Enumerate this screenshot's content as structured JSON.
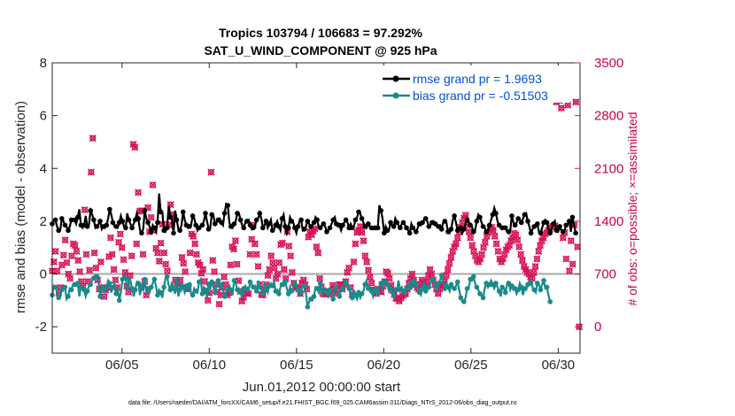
{
  "chart_data": {
    "type": "line",
    "title_line1": "Tropics 103794 / 106683 = 97.292%",
    "title_line2": "SAT_U_WIND_COMPONENT @ 925 hPa",
    "xlabel": "Jun.01,2012 00:00:00 start",
    "ylabel": "rmse and bias (model - observation)",
    "ylabel_right": "# of obs: o=possible; ×=assimilated",
    "footnote": "data file: /Users/raeder/DAI/ATM_forcXX/CAM6_setup/f.e21.FHIST_BGC.f09_025.CAM6assim.011/Diags_NTrS_2012-06/obs_diag_output.nc",
    "xlim": [
      1,
      31.25
    ],
    "ylim": [
      -3,
      8
    ],
    "ylim_right": [
      -350,
      3500
    ],
    "x_ticks": [
      5,
      10,
      15,
      20,
      25,
      30
    ],
    "x_tick_labels": [
      "06/05",
      "06/10",
      "06/15",
      "06/20",
      "06/25",
      "06/30"
    ],
    "y_ticks": [
      -2,
      0,
      2,
      4,
      6,
      8
    ],
    "y_tick_labels": [
      "-2",
      "0",
      "2",
      "4",
      "6",
      "8"
    ],
    "y_ticks_right": [
      0,
      700,
      1400,
      2100,
      2800,
      3500
    ],
    "y_tick_labels_right": [
      "0",
      "700",
      "1400",
      "2100",
      "2800",
      "3500"
    ],
    "colors": {
      "rmse": "#000000",
      "bias": "#1a8a8a",
      "obs": "#d8135a",
      "zero_line": "#a9a9a9",
      "legend_text": "#0050d8"
    },
    "series": [
      {
        "name": "rmse grand pr = 1.9693",
        "axis": "left",
        "values": [
          1.9,
          2.05,
          2.05,
          1.8,
          1.65,
          1.65,
          2.1,
          2,
          1.85,
          1.8,
          1.65,
          1.8,
          2.05,
          2.05,
          2.05,
          1.9,
          2.15,
          2.45,
          1.85,
          1.75,
          1.85,
          2.2,
          1.8,
          1.85,
          2.4,
          2.25,
          2.05,
          1.75,
          1.8,
          1.9,
          2,
          1.7,
          1.8,
          1.75,
          1.85,
          2.1,
          2.45,
          2.25,
          1.95,
          1.8,
          1.8,
          1.75,
          1.95,
          2.2,
          2,
          1.8,
          1.75,
          2.3,
          2.05,
          1.9,
          1.75,
          1.9,
          2.05,
          2.3,
          2.1,
          1.65,
          1.55,
          1.7,
          2.4,
          2.1,
          1.95,
          1.8,
          1.6,
          1.85,
          1.75,
          1.6,
          1.95,
          3.05,
          2.35,
          2.35,
          1.65,
          1.6,
          1.75,
          2.6,
          2.15,
          2.05,
          1.55,
          2.4,
          2.05,
          1.7,
          1.65,
          1.85,
          2.35,
          2.05,
          1.85,
          1.75,
          1.8,
          1.85,
          2.2,
          2.1,
          1.85,
          1.65,
          1.75,
          1.8,
          1.85,
          2,
          2.3,
          2,
          1.7,
          1.75,
          2.25,
          2.2,
          1.9,
          1.95,
          2.05,
          2.1,
          1.95,
          1.85,
          2.3,
          2.65,
          2.6,
          1.95,
          1.8,
          1.75,
          1.9,
          2,
          2.3,
          2.3,
          2.05,
          1.85,
          1.75,
          1.95,
          2,
          2.05,
          1.85,
          1.7,
          1.75,
          1.8,
          2.05,
          2.1,
          2.3,
          2.1,
          1.75,
          1.85,
          2,
          1.75,
          1.9,
          2.05,
          1.65,
          1.7,
          1.85,
          2,
          1.8,
          1.65,
          2.1,
          2.25,
          1.8,
          1.55,
          1.75,
          2.15,
          2,
          1.95,
          1.75,
          1.55,
          1.8,
          2,
          2.05,
          1.65,
          1.7,
          1.8,
          2,
          1.9,
          1.8,
          1.85,
          1.95,
          2.15,
          2.05,
          1.8,
          1.75,
          1.85,
          1.9,
          1.8,
          1.6,
          1.65,
          1.75,
          1.9,
          2.05,
          2.15,
          1.9,
          1.8,
          1.85,
          1.65,
          1.85,
          1.95,
          2.05,
          1.95,
          1.75,
          1.9,
          1.75,
          1.8,
          2.05,
          2.15,
          2.35,
          2.3,
          2.1,
          1.95,
          1.8,
          1.75,
          1.9,
          1.8,
          1.75,
          1.7,
          1.75,
          1.7,
          1.75,
          2.6,
          2.4,
          2.1,
          1.55,
          1.8,
          1.65,
          1.65,
          1.95,
          1.85,
          1.8,
          2.1,
          1.95,
          1.85,
          1.75,
          1.9,
          1.95,
          1.85,
          1.75,
          1.65,
          1.55,
          1.9,
          1.75,
          1.65,
          1.6,
          1.75,
          1.9,
          1.85,
          1.95,
          2.05,
          2.1,
          2,
          1.8,
          1.85,
          1.95,
          2,
          1.9,
          1.8,
          1.8,
          1.85,
          1.7,
          1.95,
          2,
          1.95,
          1.6,
          1.55,
          1.7,
          2.05,
          2.2,
          1.95,
          1.65,
          1.7,
          1.75,
          1.55,
          1.7,
          1.9,
          2.05,
          1.95,
          1.85,
          1.8,
          1.6,
          1.65,
          2,
          2.25,
          2.15,
          1.95,
          1.8,
          1.75,
          1.6,
          1.6,
          1.85,
          2.05,
          2.25,
          2.5,
          2.3,
          2,
          1.85,
          1.75,
          1.75,
          1.8,
          1.75,
          1.6,
          1.6,
          1.65,
          2.2,
          1.95,
          1.85,
          1.95,
          2.1,
          2.05,
          1.95,
          2.1,
          2.25,
          2.3,
          2,
          1.8,
          1.55,
          1.7,
          1.8,
          1.8,
          1.9,
          1.6,
          1.55,
          1.75,
          1.95,
          2.05,
          1.95,
          1.7,
          1.55,
          1.75,
          1.9,
          2,
          1.65,
          1.6,
          1.8,
          1.65,
          1.6,
          1.65,
          1.85,
          1.9,
          2,
          1.6,
          2.15,
          1.85,
          1.55
        ]
      },
      {
        "name": "bias grand pr = -0.51503",
        "axis": "left",
        "values": [
          -0.8,
          -0.45,
          -0.5,
          -0.7,
          -0.9,
          -0.85,
          -0.6,
          -0.5,
          -0.5,
          -0.95,
          -0.85,
          -0.55,
          -0.6,
          -0.4,
          -0.4,
          -0.45,
          -0.35,
          -0.85,
          -0.5,
          -0.55,
          -0.6,
          -0.85,
          -0.65,
          -0.45,
          -0.4,
          -0.25,
          -0.15,
          -0.05,
          -0.1,
          -0.3,
          -0.85,
          -0.45,
          -0.55,
          -0.7,
          -0.5,
          -0.25,
          -0.35,
          -0.7,
          -0.5,
          -0.35,
          -0.75,
          -0.55,
          -1,
          -0.7,
          -0.2,
          -0.05,
          -0.15,
          -0.65,
          -0.2,
          -0.25,
          -0.55,
          -0.85,
          -0.6,
          -0.3,
          -0.35,
          -0.8,
          -0.45,
          -0.65,
          -0.2,
          -0.75,
          -0.55,
          -0.7,
          -0.5,
          -0.35,
          -0.2,
          -0.45,
          -0.8,
          -0.6,
          -0.7,
          -0.9,
          -0.5,
          -0.15,
          -0.1,
          -0.45,
          -0.6,
          -0.3,
          -0.55,
          -0.75,
          -0.25,
          -0.85,
          -0.6,
          -0.3,
          -0.5,
          -0.7,
          -0.45,
          -0.6,
          -0.4,
          -0.75,
          -0.8,
          -0.55,
          -0.65,
          -0.7,
          -0.3,
          -0.2,
          -0.75,
          -0.5,
          -0.6,
          -0.9,
          -0.4,
          -0.55,
          -0.3,
          -0.5,
          -0.7,
          -0.4,
          -0.25,
          -0.55,
          -0.4,
          -0.6,
          -0.85,
          -0.7,
          -0.6,
          -0.45,
          -0.6,
          -0.8,
          -0.25,
          -0.35,
          -0.6,
          -0.55,
          -0.7,
          -0.85,
          -0.55,
          -0.45,
          -0.6,
          -0.65,
          -0.3,
          -0.4,
          -0.5,
          -0.45,
          -0.65,
          -0.25,
          -0.5,
          -0.6,
          -0.75,
          -0.4,
          -0.55,
          -0.7,
          -0.45,
          -0.35,
          -0.45,
          -0.3,
          -0.65,
          -0.6,
          -0.75,
          -0.5,
          -0.4,
          -0.45,
          -0.3,
          -0.55,
          -0.75,
          -0.5,
          -0.65,
          -0.5,
          -0.35,
          -0.4,
          -0.6,
          -0.8,
          -0.7,
          -0.4,
          -0.45,
          -0.75,
          -1.25,
          -1.05,
          -0.95,
          -1,
          -0.85,
          -0.5,
          -0.55,
          -0.7,
          -0.35,
          -0.8,
          -0.6,
          -0.55,
          -0.7,
          -0.85,
          -0.6,
          -0.75,
          -0.95,
          -0.6,
          -0.5,
          -0.7,
          -0.85,
          -0.6,
          -0.55,
          -0.4,
          -0.3,
          -0.4,
          -0.55,
          -0.75,
          -0.9,
          -0.6,
          -0.8,
          -0.95,
          -0.7,
          -0.9,
          -0.75,
          -0.65,
          -0.4,
          -0.25,
          -0.55,
          -0.5,
          -0.65,
          -0.85,
          -0.6,
          -0.55,
          -0.7,
          -0.45,
          -0.35,
          -0.55,
          -0.3,
          -0.25,
          -0.4,
          -0.65,
          -0.55,
          -0.7,
          -0.8,
          -0.55,
          -0.6,
          -0.25,
          -0.6,
          -0.5,
          -0.65,
          -0.75,
          -0.55,
          -0.5,
          -0.4,
          -0.6,
          -0.3,
          -0.2,
          -0.4,
          -0.5,
          -0.7,
          -0.8,
          -0.55,
          -0.3,
          -0.65,
          -0.45,
          -0.5,
          -0.35,
          -0.2,
          -0.15,
          -0.45,
          -0.6,
          -0.35,
          -0.25,
          -0.05,
          -0.3,
          -0.55,
          -0.35,
          -0.5,
          -0.65,
          -0.4,
          -0.55,
          -0.55,
          -0.45,
          -0.3,
          -0.6,
          -0.9,
          -1.05,
          -1.05,
          -0.9,
          -0.55,
          -0.55,
          -0.2,
          -0.25,
          -0.1,
          -0.35,
          -0.5,
          -0.6,
          -0.75,
          -0.8,
          -0.9,
          -0.55,
          -0.35,
          -0.5,
          -0.4,
          -0.25,
          -0.4,
          -0.55,
          -0.35,
          -0.5,
          -0.65,
          -0.85,
          -0.5,
          -0.55,
          -0.7,
          -0.4,
          -0.35,
          -0.6,
          -0.45,
          -0.6,
          -0.55,
          -0.75,
          -0.6,
          -0.35,
          -0.5,
          -0.8,
          -0.55,
          -0.6,
          -0.4,
          -0.25,
          -0.35,
          -0.5,
          -0.6,
          -0.7,
          -0.35,
          -0.4,
          -0.6,
          -0.4,
          -0.25,
          -0.55,
          -0.5,
          -0.8,
          -1.05
        ]
      },
      {
        "name": "obs possible",
        "axis": "right",
        "values": [
          740,
          860,
          1000,
          740,
          450,
          520,
          820,
          950,
          1150,
          850,
          700,
          640,
          940,
          1100,
          1080,
          1000,
          880,
          730,
          600,
          540,
          1550,
          960,
          600,
          750,
          2050,
          2500,
          980,
          780,
          620,
          500,
          860,
          520,
          400,
          490,
          520,
          930,
          1180,
          960,
          760,
          620,
          520,
          1120,
          1230,
          1050,
          890,
          720,
          540,
          460,
          680,
          940,
          2420,
          2380,
          1100,
          1780,
          1530,
          1540,
          960,
          600,
          420,
          1580,
          1260,
          1450,
          1880,
          1280,
          1040,
          980,
          870,
          1110,
          1360,
          980,
          830,
          740,
          1350,
          1620,
          1490,
          1450,
          620,
          580,
          510,
          620,
          920,
          840,
          730,
          520,
          500,
          980,
          1230,
          1200,
          1100,
          960,
          850,
          820,
          710,
          760,
          600,
          470,
          350,
          450,
          2050,
          880,
          730,
          560,
          460,
          300,
          420,
          520,
          660,
          560,
          420,
          450,
          820,
          1060,
          1030,
          1140,
          830,
          610,
          470,
          340,
          390,
          490,
          440,
          440,
          960,
          1160,
          1350,
          1100,
          960,
          800,
          560,
          430,
          420,
          500,
          560,
          680,
          760,
          940,
          850,
          780,
          640,
          700,
          850,
          1090,
          1110,
          760,
          640,
          1260,
          1070,
          940,
          720,
          580,
          520,
          520,
          500,
          440,
          580,
          620,
          560,
          500,
          1190,
          1260,
          1220,
          1270,
          1300,
          1060,
          980,
          640,
          530,
          440,
          430,
          470,
          470,
          460,
          430,
          550,
          500,
          440,
          490,
          560,
          560,
          500,
          560,
          600,
          720,
          780,
          520,
          430,
          860,
          1100,
          1250,
          1280,
          1330,
          1250,
          1140,
          940,
          860,
          750,
          660,
          580,
          490,
          470,
          440,
          500,
          470,
          460,
          540,
          600,
          730,
          710,
          640,
          550,
          480,
          430,
          380,
          370,
          340,
          380,
          410,
          430,
          440,
          500,
          580,
          640,
          700,
          620,
          560,
          520,
          500,
          560,
          620,
          580,
          520,
          600,
          680,
          760,
          700,
          620,
          560,
          500,
          440,
          500,
          520,
          560,
          600,
          680,
          760,
          840,
          920,
          1000,
          1060,
          1100,
          1180,
          1260,
          1320,
          1380,
          1440,
          1480,
          1350,
          1260,
          1180,
          1080,
          1000,
          940,
          880,
          860,
          900,
          960,
          1050,
          1120,
          1200,
          1250,
          1300,
          1320,
          1280,
          1200,
          1100,
          1000,
          900,
          860,
          900,
          960,
          1020,
          1060,
          1080,
          1140,
          1180,
          1240,
          1220,
          1150,
          1060,
          960,
          880,
          800,
          760,
          720,
          700,
          660,
          640,
          720,
          800,
          900,
          1000,
          1080,
          1140,
          1180,
          1230,
          1250,
          1280,
          1300,
          1320,
          1330,
          1340,
          2980,
          3080,
          3000,
          2900,
          1180,
          1250,
          900,
          2940,
          740,
          1140,
          830,
          1350,
          2980,
          1060,
          0
        ]
      }
    ]
  },
  "legend": {
    "rmse_label": "rmse grand pr = 1.9693",
    "bias_label": "bias grand pr = -0.51503"
  }
}
